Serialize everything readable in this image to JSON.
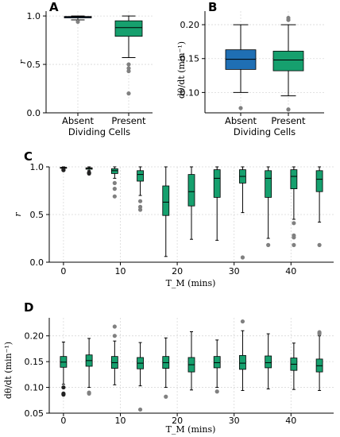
{
  "colors": {
    "absent": "#1f6fb4",
    "present": "#16a06e",
    "outlier_light": "#808080",
    "outlier_dark": "#222222"
  },
  "chart_data": [
    {
      "panel": "A",
      "type": "box",
      "categories": [
        "Absent",
        "Present"
      ],
      "xlabel": "Dividing Cells",
      "ylabel": "r",
      "ylim": [
        0,
        1.05
      ],
      "yticks": [
        0.0,
        0.5,
        1.0
      ],
      "yticklabels": [
        "0.0",
        "0.5",
        "1.0"
      ],
      "boxes": [
        {
          "category": "Absent",
          "q1": 0.98,
          "median": 0.99,
          "q3": 0.995,
          "whislo": 0.96,
          "whishi": 1.0,
          "fliers": [
            0.94
          ],
          "color": "#1f6fb4",
          "flier_color": "#808080"
        },
        {
          "category": "Present",
          "q1": 0.79,
          "median": 0.88,
          "q3": 0.95,
          "whislo": 0.57,
          "whishi": 1.0,
          "fliers": [
            0.5,
            0.46,
            0.43,
            0.2
          ],
          "color": "#16a06e",
          "flier_color": "#808080"
        }
      ]
    },
    {
      "panel": "B",
      "type": "box",
      "categories": [
        "Absent",
        "Present"
      ],
      "xlabel": "Dividing Cells",
      "ylabel": "dθ/dt (min⁻¹)",
      "ylim": [
        0.07,
        0.22
      ],
      "yticks": [
        0.1,
        0.15,
        0.2
      ],
      "yticklabels": [
        "0.10",
        "0.15",
        "0.20"
      ],
      "boxes": [
        {
          "category": "Absent",
          "q1": 0.134,
          "median": 0.149,
          "q3": 0.163,
          "whislo": 0.1,
          "whishi": 0.2,
          "fliers": [
            0.077
          ],
          "color": "#1f6fb4",
          "flier_color": "#808080"
        },
        {
          "category": "Present",
          "q1": 0.132,
          "median": 0.148,
          "q3": 0.161,
          "whislo": 0.095,
          "whishi": 0.2,
          "fliers": [
            0.21,
            0.207,
            0.075
          ],
          "color": "#16a06e",
          "flier_color": "#808080"
        }
      ]
    },
    {
      "panel": "C",
      "type": "box",
      "xlabel": "T_M (mins)",
      "ylabel": "r",
      "xlim": [
        -2.5,
        47.5
      ],
      "xticks": [
        0,
        10,
        20,
        30,
        40
      ],
      "xticklabels": [
        "0",
        "10",
        "20",
        "30",
        "40"
      ],
      "ylim": [
        0,
        1.0
      ],
      "yticks": [
        0.0,
        0.5,
        1.0
      ],
      "yticklabels": [
        "0.0",
        "0.5",
        "1.0"
      ],
      "boxes": [
        {
          "x": 0,
          "q1": 0.985,
          "median": 0.99,
          "q3": 0.995,
          "whislo": 0.98,
          "whishi": 1.0,
          "fliers": [
            0.97,
            0.965
          ],
          "color": "#16a06e",
          "flier_color": "#222222"
        },
        {
          "x": 4.5,
          "q1": 0.975,
          "median": 0.985,
          "q3": 0.99,
          "whislo": 0.96,
          "whishi": 1.0,
          "fliers": [
            0.94,
            0.93
          ],
          "color": "#16a06e",
          "flier_color": "#222222"
        },
        {
          "x": 9,
          "q1": 0.93,
          "median": 0.96,
          "q3": 0.98,
          "whislo": 0.88,
          "whishi": 1.0,
          "fliers": [
            0.83,
            0.77,
            0.69
          ],
          "color": "#16a06e",
          "flier_color": "#808080"
        },
        {
          "x": 13.5,
          "q1": 0.85,
          "median": 0.92,
          "q3": 0.96,
          "whislo": 0.7,
          "whishi": 1.0,
          "fliers": [
            0.64,
            0.58,
            0.55
          ],
          "color": "#16a06e",
          "flier_color": "#808080"
        },
        {
          "x": 18,
          "q1": 0.49,
          "median": 0.63,
          "q3": 0.8,
          "whislo": 0.06,
          "whishi": 1.0,
          "fliers": [],
          "color": "#16a06e",
          "flier_color": "#808080"
        },
        {
          "x": 22.5,
          "q1": 0.59,
          "median": 0.74,
          "q3": 0.92,
          "whislo": 0.24,
          "whishi": 1.0,
          "fliers": [],
          "color": "#16a06e",
          "flier_color": "#808080"
        },
        {
          "x": 27,
          "q1": 0.68,
          "median": 0.88,
          "q3": 0.97,
          "whislo": 0.23,
          "whishi": 1.0,
          "fliers": [],
          "color": "#16a06e",
          "flier_color": "#808080"
        },
        {
          "x": 31.5,
          "q1": 0.83,
          "median": 0.9,
          "q3": 0.97,
          "whislo": 0.52,
          "whishi": 1.0,
          "fliers": [
            0.05
          ],
          "color": "#16a06e",
          "flier_color": "#808080"
        },
        {
          "x": 36,
          "q1": 0.68,
          "median": 0.88,
          "q3": 0.96,
          "whislo": 0.25,
          "whishi": 1.0,
          "fliers": [
            0.18
          ],
          "color": "#16a06e",
          "flier_color": "#808080"
        },
        {
          "x": 40.5,
          "q1": 0.77,
          "median": 0.9,
          "q3": 0.97,
          "whislo": 0.45,
          "whishi": 1.0,
          "fliers": [
            0.41,
            0.28,
            0.26,
            0.18
          ],
          "color": "#16a06e",
          "flier_color": "#808080"
        },
        {
          "x": 45,
          "q1": 0.74,
          "median": 0.87,
          "q3": 0.96,
          "whislo": 0.42,
          "whishi": 1.0,
          "fliers": [
            0.18
          ],
          "color": "#16a06e",
          "flier_color": "#808080"
        }
      ]
    },
    {
      "panel": "D",
      "type": "box",
      "xlabel": "T_M (mins)",
      "ylabel": "dθ/dt (min⁻¹)",
      "xlim": [
        -2.5,
        47.5
      ],
      "xticks": [
        0,
        10,
        20,
        30,
        40
      ],
      "xticklabels": [
        "0",
        "10",
        "20",
        "30",
        "40"
      ],
      "ylim": [
        0.05,
        0.235
      ],
      "yticks": [
        0.05,
        0.1,
        0.15,
        0.2
      ],
      "yticklabels": [
        "0.05",
        "0.10",
        "0.15",
        "0.20"
      ],
      "boxes": [
        {
          "x": 0,
          "q1": 0.139,
          "median": 0.149,
          "q3": 0.16,
          "whislo": 0.106,
          "whishi": 0.188,
          "fliers": [
            0.1,
            0.088,
            0.086
          ],
          "color": "#16a06e",
          "flier_color": "#222222"
        },
        {
          "x": 4.5,
          "q1": 0.141,
          "median": 0.152,
          "q3": 0.163,
          "whislo": 0.1,
          "whishi": 0.195,
          "fliers": [
            0.09,
            0.088
          ],
          "color": "#16a06e",
          "flier_color": "#808080"
        },
        {
          "x": 9,
          "q1": 0.137,
          "median": 0.148,
          "q3": 0.16,
          "whislo": 0.105,
          "whishi": 0.19,
          "fliers": [
            0.218,
            0.2
          ],
          "color": "#16a06e",
          "flier_color": "#808080"
        },
        {
          "x": 13.5,
          "q1": 0.136,
          "median": 0.147,
          "q3": 0.158,
          "whislo": 0.103,
          "whishi": 0.187,
          "fliers": [
            0.057
          ],
          "color": "#16a06e",
          "flier_color": "#808080"
        },
        {
          "x": 18,
          "q1": 0.137,
          "median": 0.148,
          "q3": 0.16,
          "whislo": 0.1,
          "whishi": 0.196,
          "fliers": [
            0.082
          ],
          "color": "#16a06e",
          "flier_color": "#808080"
        },
        {
          "x": 22.5,
          "q1": 0.13,
          "median": 0.144,
          "q3": 0.158,
          "whislo": 0.095,
          "whishi": 0.208,
          "fliers": [],
          "color": "#16a06e",
          "flier_color": "#808080"
        },
        {
          "x": 27,
          "q1": 0.138,
          "median": 0.148,
          "q3": 0.16,
          "whislo": 0.1,
          "whishi": 0.192,
          "fliers": [
            0.092
          ],
          "color": "#16a06e",
          "flier_color": "#808080"
        },
        {
          "x": 31.5,
          "q1": 0.135,
          "median": 0.147,
          "q3": 0.162,
          "whislo": 0.094,
          "whishi": 0.21,
          "fliers": [
            0.228
          ],
          "color": "#16a06e",
          "flier_color": "#808080"
        },
        {
          "x": 36,
          "q1": 0.138,
          "median": 0.148,
          "q3": 0.161,
          "whislo": 0.097,
          "whishi": 0.204,
          "fliers": [],
          "color": "#16a06e",
          "flier_color": "#808080"
        },
        {
          "x": 40.5,
          "q1": 0.133,
          "median": 0.145,
          "q3": 0.157,
          "whislo": 0.096,
          "whishi": 0.186,
          "fliers": [],
          "color": "#16a06e",
          "flier_color": "#808080"
        },
        {
          "x": 45,
          "q1": 0.13,
          "median": 0.142,
          "q3": 0.155,
          "whislo": 0.094,
          "whishi": 0.2,
          "fliers": [
            0.207,
            0.204
          ],
          "color": "#16a06e",
          "flier_color": "#808080"
        }
      ]
    }
  ]
}
